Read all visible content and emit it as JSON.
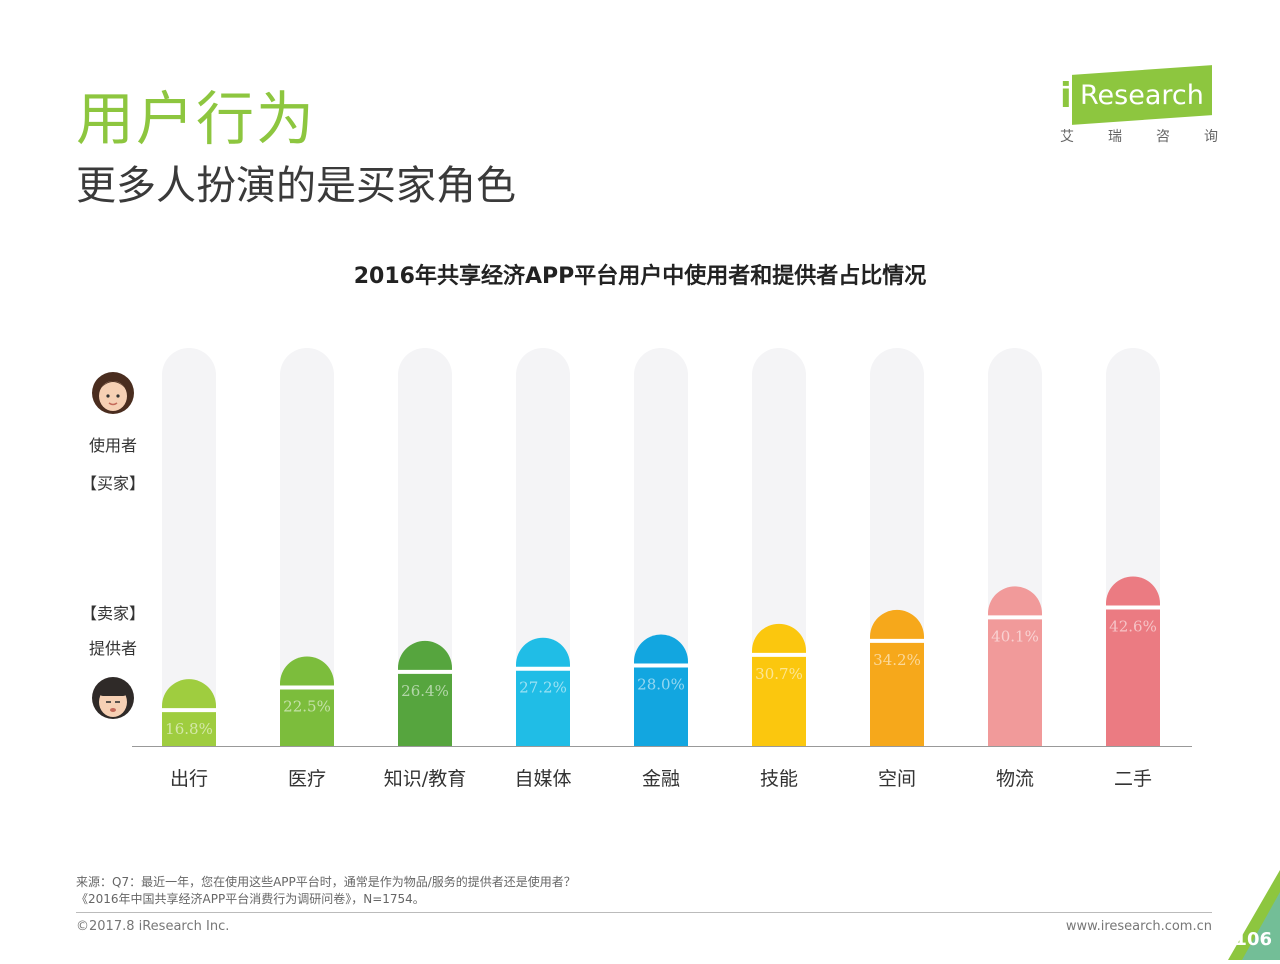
{
  "header": {
    "title": "用户行为",
    "subtitle": "更多人扮演的是买家角色"
  },
  "logo": {
    "brand": "Research",
    "i_mark": "i",
    "cn_chars": [
      "艾",
      "瑞",
      "咨",
      "询"
    ]
  },
  "left_axis": {
    "top_label": "使用者",
    "top_role": "【买家】",
    "bottom_role": "【卖家】",
    "bottom_label": "提供者",
    "top_icon": "woman-face-icon",
    "bottom_icon": "girl-face-icon"
  },
  "colors": {
    "accent": "#8dc63f",
    "track": "#f4f4f6",
    "bars": [
      "#9fcd3f",
      "#7cbd3c",
      "#56a53e",
      "#20bde6",
      "#12a6e0",
      "#fbc70e",
      "#f6a81b",
      "#f19a9a",
      "#eb7b82"
    ]
  },
  "chart_data": {
    "type": "bar",
    "title": "2016年共享经济APP平台用户中使用者和提供者占比情况",
    "categories": [
      "出行",
      "医疗",
      "知识/教育",
      "自媒体",
      "金融",
      "技能",
      "空间",
      "物流",
      "二手"
    ],
    "series": [
      {
        "values": [
          16.8,
          22.5,
          26.4,
          27.2,
          28.0,
          30.7,
          34.2,
          40.1,
          42.6
        ]
      }
    ],
    "value_labels": [
      "16.8%",
      "22.5%",
      "26.4%",
      "27.2%",
      "28.0%",
      "30.7%",
      "34.2%",
      "40.1%",
      "42.6%"
    ],
    "ylim": [
      0,
      100
    ],
    "grid": false,
    "legend": "none"
  },
  "footer": {
    "source_line1": "来源：Q7：最近一年，您在使用这些APP平台时，通常是作为物品/服务的提供者还是使用者？",
    "source_line2": "《2016年中国共享经济APP平台消费行为调研问卷》，N=1754。",
    "copyright": "©2017.8 iResearch Inc.",
    "url": "www.iresearch.com.cn",
    "page_number": "106"
  }
}
